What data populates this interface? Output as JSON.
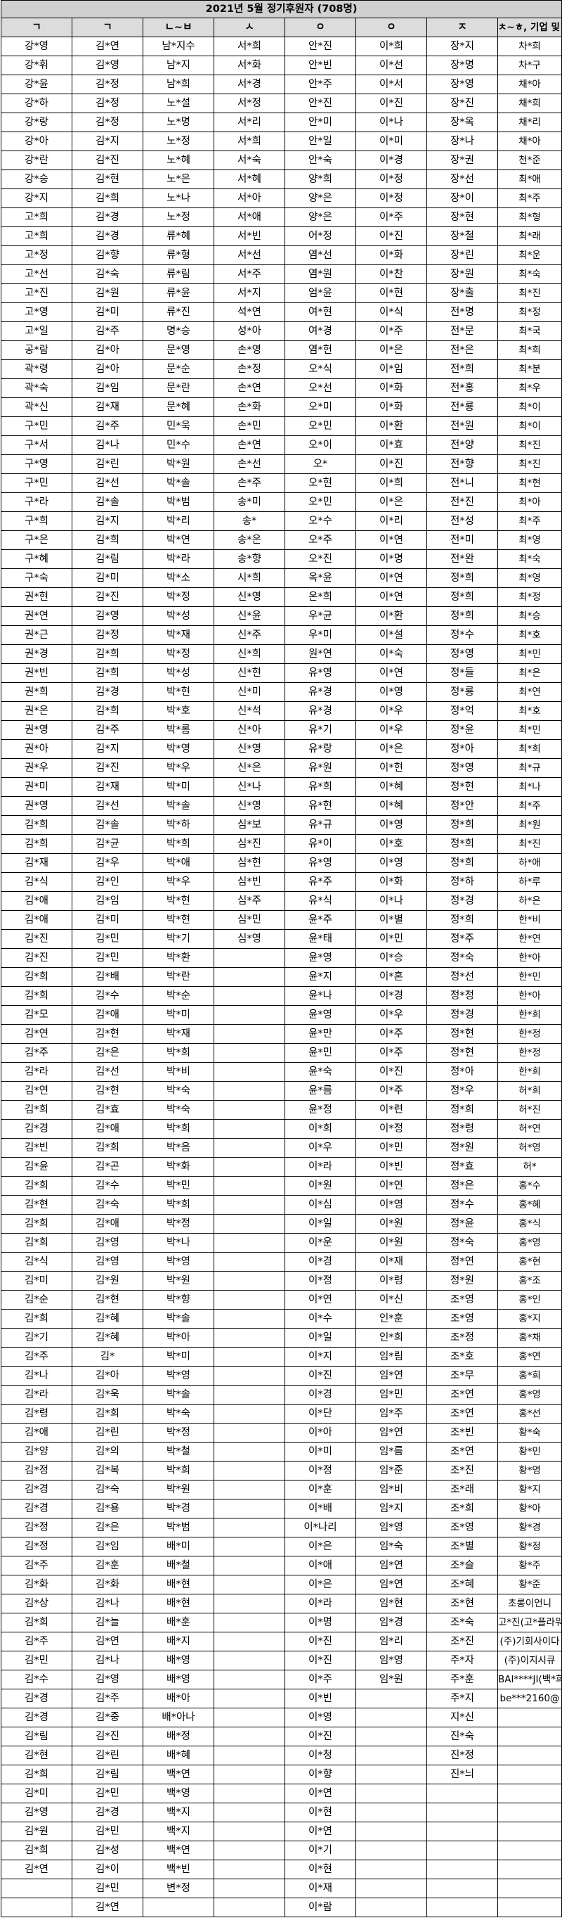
{
  "title": "2021년 5월 정기후원자 (708명)",
  "headers": [
    "ㄱ",
    "ㄱ",
    "ㄴ~ㅂ",
    "ㅅ",
    "ㅇ",
    "ㅇ",
    "ㅈ",
    "ㅊ~ㅎ, 기업 및 익명"
  ],
  "rows": [
    [
      "강*영",
      "김*연",
      "남*지수",
      "서*희",
      "안*진",
      "이*희",
      "장*지",
      "차*희"
    ],
    [
      "강*휘",
      "김*영",
      "남*지",
      "서*화",
      "안*빈",
      "이*선",
      "장*명",
      "차*구"
    ],
    [
      "강*윤",
      "김*정",
      "남*희",
      "서*경",
      "안*주",
      "이*서",
      "장*영",
      "채*아"
    ],
    [
      "강*하",
      "김*정",
      "노*설",
      "서*정",
      "안*진",
      "이*진",
      "장*진",
      "채*희"
    ],
    [
      "강*랑",
      "김*정",
      "노*명",
      "서*리",
      "안*미",
      "이*나",
      "장*옥",
      "채*리"
    ],
    [
      "강*아",
      "김*지",
      "노*정",
      "서*희",
      "안*일",
      "이*미",
      "장*나",
      "채*아"
    ],
    [
      "강*란",
      "김*진",
      "노*혜",
      "서*숙",
      "안*숙",
      "이*경",
      "장*권",
      "천*준"
    ],
    [
      "강*승",
      "김*현",
      "노*은",
      "서*혜",
      "양*희",
      "이*정",
      "장*선",
      "최*애"
    ],
    [
      "강*지",
      "김*희",
      "노*나",
      "서*아",
      "양*은",
      "이*정",
      "장*이",
      "최*주"
    ],
    [
      "고*희",
      "김*경",
      "노*정",
      "서*애",
      "양*은",
      "이*주",
      "장*현",
      "최*형"
    ],
    [
      "고*희",
      "김*경",
      "류*혜",
      "서*빈",
      "어*정",
      "이*진",
      "장*철",
      "최*래"
    ],
    [
      "고*정",
      "김*향",
      "류*형",
      "서*선",
      "염*선",
      "이*화",
      "장*린",
      "최*운"
    ],
    [
      "고*선",
      "김*숙",
      "류*림",
      "서*주",
      "염*원",
      "이*찬",
      "장*원",
      "최*숙"
    ],
    [
      "고*진",
      "김*원",
      "류*윤",
      "서*지",
      "엄*윤",
      "이*현",
      "장*출",
      "최*진"
    ],
    [
      "고*영",
      "김*미",
      "류*진",
      "석*연",
      "여*현",
      "이*식",
      "전*명",
      "최*정"
    ],
    [
      "고*일",
      "김*주",
      "명*승",
      "성*아",
      "여*경",
      "이*주",
      "전*문",
      "최*국"
    ],
    [
      "공*람",
      "김*아",
      "문*영",
      "손*영",
      "염*헌",
      "이*은",
      "전*은",
      "최*희"
    ],
    [
      "곽*령",
      "김*아",
      "문*순",
      "손*정",
      "오*식",
      "이*임",
      "전*희",
      "최*분"
    ],
    [
      "곽*숙",
      "김*임",
      "문*란",
      "손*연",
      "오*선",
      "이*화",
      "전*홍",
      "최*우"
    ],
    [
      "곽*신",
      "김*재",
      "문*혜",
      "손*화",
      "오*미",
      "이*화",
      "전*룡",
      "최*이"
    ],
    [
      "구*민",
      "김*주",
      "민*욱",
      "손*민",
      "오*민",
      "이*환",
      "전*원",
      "최*이"
    ],
    [
      "구*서",
      "김*나",
      "민*수",
      "손*연",
      "오*이",
      "이*효",
      "전*양",
      "최*진"
    ],
    [
      "구*영",
      "김*린",
      "박*원",
      "손*선",
      "오*",
      "이*진",
      "전*향",
      "최*진"
    ],
    [
      "구*민",
      "김*선",
      "박*솔",
      "손*주",
      "오*현",
      "이*희",
      "전*니",
      "최*현"
    ],
    [
      "구*라",
      "김*솔",
      "박*범",
      "송*미",
      "오*민",
      "이*은",
      "전*진",
      "최*아"
    ],
    [
      "구*희",
      "김*지",
      "박*리",
      "송*",
      "오*수",
      "이*리",
      "전*성",
      "최*주"
    ],
    [
      "구*은",
      "김*희",
      "박*연",
      "송*은",
      "오*주",
      "이*연",
      "전*미",
      "최*영"
    ],
    [
      "구*혜",
      "김*림",
      "박*라",
      "송*향",
      "오*진",
      "이*명",
      "전*완",
      "최*숙"
    ],
    [
      "구*숙",
      "김*미",
      "박*소",
      "시*희",
      "옥*윤",
      "이*연",
      "정*희",
      "최*영"
    ],
    [
      "권*현",
      "김*진",
      "박*정",
      "신*영",
      "온*희",
      "이*연",
      "정*희",
      "최*정"
    ],
    [
      "권*연",
      "김*영",
      "박*성",
      "신*윤",
      "우*균",
      "이*환",
      "정*희",
      "최*승"
    ],
    [
      "권*근",
      "김*정",
      "박*재",
      "신*주",
      "우*미",
      "이*설",
      "정*수",
      "최*호"
    ],
    [
      "권*경",
      "김*희",
      "박*정",
      "신*희",
      "원*연",
      "이*숙",
      "정*영",
      "최*민"
    ],
    [
      "권*빈",
      "김*희",
      "박*성",
      "신*현",
      "유*영",
      "이*연",
      "정*들",
      "최*은"
    ],
    [
      "권*희",
      "김*경",
      "박*현",
      "신*미",
      "유*경",
      "이*영",
      "정*룡",
      "최*연"
    ],
    [
      "권*은",
      "김*희",
      "박*호",
      "신*석",
      "유*경",
      "이*우",
      "정*억",
      "최*호"
    ],
    [
      "권*영",
      "김*주",
      "박*롬",
      "신*아",
      "유*기",
      "이*우",
      "정*윤",
      "최*민"
    ],
    [
      "권*아",
      "김*지",
      "박*영",
      "신*영",
      "유*랑",
      "이*은",
      "정*아",
      "최*희"
    ],
    [
      "권*우",
      "김*진",
      "박*우",
      "신*은",
      "유*원",
      "이*현",
      "정*영",
      "최*규"
    ],
    [
      "권*미",
      "김*재",
      "박*미",
      "신*나",
      "유*희",
      "이*혜",
      "정*현",
      "최*나"
    ],
    [
      "권*영",
      "김*선",
      "박*솔",
      "신*영",
      "유*현",
      "이*혜",
      "정*안",
      "최*주"
    ],
    [
      "김*희",
      "김*솔",
      "박*하",
      "심*보",
      "유*규",
      "이*영",
      "정*희",
      "최*원"
    ],
    [
      "김*희",
      "김*균",
      "박*희",
      "심*진",
      "유*이",
      "이*호",
      "정*희",
      "최*진"
    ],
    [
      "김*재",
      "김*우",
      "박*애",
      "심*현",
      "유*영",
      "이*영",
      "정*희",
      "하*애"
    ],
    [
      "김*식",
      "김*인",
      "박*우",
      "심*빈",
      "유*주",
      "이*화",
      "정*하",
      "하*루"
    ],
    [
      "김*애",
      "김*임",
      "박*현",
      "심*주",
      "유*식",
      "이*나",
      "정*경",
      "하*은"
    ],
    [
      "김*애",
      "김*미",
      "박*현",
      "심*민",
      "윤*주",
      "이*별",
      "정*희",
      "한*비"
    ],
    [
      "김*진",
      "김*민",
      "박*기",
      "심*영",
      "윤*태",
      "이*민",
      "정*주",
      "한*연"
    ],
    [
      "김*진",
      "김*민",
      "박*환",
      "",
      "윤*영",
      "이*승",
      "정*숙",
      "한*아"
    ],
    [
      "김*희",
      "김*배",
      "박*란",
      "",
      "윤*지",
      "이*혼",
      "정*선",
      "한*민"
    ],
    [
      "김*희",
      "김*수",
      "박*순",
      "",
      "윤*나",
      "이*경",
      "정*정",
      "한*아"
    ],
    [
      "김*모",
      "김*애",
      "박*미",
      "",
      "윤*영",
      "이*우",
      "정*경",
      "한*희"
    ],
    [
      "김*연",
      "김*현",
      "박*재",
      "",
      "윤*만",
      "이*주",
      "정*현",
      "한*정"
    ],
    [
      "김*주",
      "김*은",
      "박*희",
      "",
      "윤*민",
      "이*주",
      "정*현",
      "한*정"
    ],
    [
      "김*라",
      "김*선",
      "박*비",
      "",
      "윤*숙",
      "이*진",
      "정*아",
      "한*희"
    ],
    [
      "김*연",
      "김*현",
      "박*숙",
      "",
      "윤*름",
      "이*주",
      "정*우",
      "허*희"
    ],
    [
      "김*희",
      "김*효",
      "박*숙",
      "",
      "윤*정",
      "이*련",
      "정*희",
      "허*진"
    ],
    [
      "김*경",
      "김*애",
      "박*희",
      "",
      "이*희",
      "이*정",
      "정*령",
      "허*연"
    ],
    [
      "김*빈",
      "김*희",
      "박*음",
      "",
      "이*우",
      "이*민",
      "정*원",
      "허*영"
    ],
    [
      "김*윤",
      "김*곤",
      "박*화",
      "",
      "이*라",
      "이*빈",
      "정*효",
      "허*"
    ],
    [
      "김*희",
      "김*수",
      "박*민",
      "",
      "이*원",
      "이*연",
      "정*은",
      "홍*수"
    ],
    [
      "김*현",
      "김*숙",
      "박*희",
      "",
      "이*심",
      "이*영",
      "정*수",
      "홍*혜"
    ],
    [
      "김*희",
      "김*애",
      "박*정",
      "",
      "이*일",
      "이*원",
      "정*윤",
      "홍*식"
    ],
    [
      "김*희",
      "김*영",
      "박*나",
      "",
      "이*운",
      "이*원",
      "정*숙",
      "홍*영"
    ],
    [
      "김*식",
      "김*영",
      "박*영",
      "",
      "이*경",
      "이*재",
      "정*연",
      "홍*현"
    ],
    [
      "김*미",
      "김*원",
      "박*원",
      "",
      "이*정",
      "이*령",
      "정*원",
      "홍*조"
    ],
    [
      "김*순",
      "김*현",
      "박*향",
      "",
      "이*연",
      "이*신",
      "조*영",
      "홍*인"
    ],
    [
      "김*희",
      "김*혜",
      "박*솔",
      "",
      "이*수",
      "인*훈",
      "조*영",
      "홍*지"
    ],
    [
      "김*기",
      "김*혜",
      "박*아",
      "",
      "이*일",
      "인*희",
      "조*정",
      "홍*채"
    ],
    [
      "김*주",
      "김*",
      "박*미",
      "",
      "이*지",
      "임*림",
      "조*호",
      "홍*연"
    ],
    [
      "김*나",
      "김*아",
      "박*영",
      "",
      "이*진",
      "임*연",
      "조*무",
      "홍*희"
    ],
    [
      "김*라",
      "김*욱",
      "박*솔",
      "",
      "이*경",
      "임*민",
      "조*연",
      "홍*영"
    ],
    [
      "김*령",
      "김*희",
      "박*숙",
      "",
      "이*단",
      "임*주",
      "조*연",
      "홍*선"
    ],
    [
      "김*애",
      "김*린",
      "박*정",
      "",
      "이*아",
      "임*연",
      "조*빈",
      "황*숙"
    ],
    [
      "김*양",
      "김*의",
      "박*철",
      "",
      "이*미",
      "임*름",
      "조*연",
      "황*민"
    ],
    [
      "김*정",
      "김*복",
      "박*희",
      "",
      "이*정",
      "임*준",
      "조*진",
      "황*영"
    ],
    [
      "김*경",
      "김*숙",
      "박*원",
      "",
      "이*훈",
      "임*비",
      "조*래",
      "황*지"
    ],
    [
      "김*경",
      "김*용",
      "박*경",
      "",
      "이*배",
      "임*지",
      "조*희",
      "황*아"
    ],
    [
      "김*정",
      "김*은",
      "박*범",
      "",
      "이*나리",
      "임*영",
      "조*영",
      "황*경"
    ],
    [
      "김*정",
      "김*임",
      "배*미",
      "",
      "이*은",
      "임*숙",
      "조*별",
      "황*정"
    ],
    [
      "김*주",
      "김*훈",
      "배*철",
      "",
      "이*애",
      "임*연",
      "조*슬",
      "황*주"
    ],
    [
      "김*화",
      "김*화",
      "배*현",
      "",
      "이*은",
      "임*연",
      "조*혜",
      "황*준"
    ],
    [
      "김*상",
      "김*나",
      "배*현",
      "",
      "이*라",
      "임*현",
      "조*현",
      "초롱이언니"
    ],
    [
      "김*희",
      "김*늘",
      "배*훈",
      "",
      "이*명",
      "임*경",
      "조*숙",
      "고*진(고*플라워)"
    ],
    [
      "김*주",
      "김*연",
      "배*지",
      "",
      "이*진",
      "임*리",
      "조*진",
      "(주)기회사이다"
    ],
    [
      "김*민",
      "김*나",
      "배*영",
      "",
      "이*진",
      "임*영",
      "주*자",
      "(주)이지시큐"
    ],
    [
      "김*수",
      "김*영",
      "배*영",
      "",
      "이*주",
      "임*원",
      "주*훈",
      "BAI****JI(백*희)"
    ],
    [
      "김*경",
      "김*주",
      "배*아",
      "",
      "이*빈",
      "",
      "주*지",
      "be***2160@"
    ],
    [
      "김*경",
      "김*중",
      "배*아나",
      "",
      "이*영",
      "",
      "지*신",
      ""
    ],
    [
      "김*림",
      "김*진",
      "배*정",
      "",
      "이*진",
      "",
      "진*숙",
      ""
    ],
    [
      "김*현",
      "김*린",
      "배*혜",
      "",
      "이*청",
      "",
      "진*정",
      ""
    ],
    [
      "김*희",
      "김*림",
      "백*연",
      "",
      "이*향",
      "",
      "진*늬",
      ""
    ],
    [
      "김*미",
      "김*민",
      "백*영",
      "",
      "이*연",
      "",
      "",
      ""
    ],
    [
      "김*영",
      "김*경",
      "백*지",
      "",
      "이*현",
      "",
      "",
      ""
    ],
    [
      "김*원",
      "김*민",
      "백*지",
      "",
      "이*연",
      "",
      "",
      ""
    ],
    [
      "김*희",
      "김*성",
      "백*연",
      "",
      "이*기",
      "",
      "",
      ""
    ],
    [
      "김*연",
      "김*이",
      "백*빈",
      "",
      "이*현",
      "",
      "",
      ""
    ],
    [
      "",
      "김*민",
      "변*정",
      "",
      "이*재",
      "",
      "",
      ""
    ],
    [
      "",
      "김*연",
      "",
      "",
      "이*람",
      "",
      "",
      ""
    ]
  ]
}
